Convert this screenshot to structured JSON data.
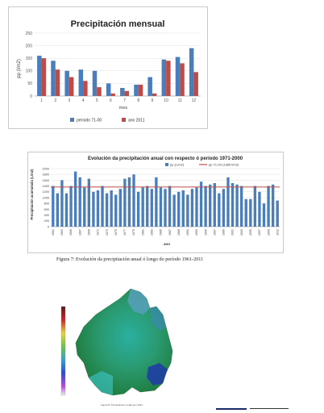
{
  "monthly": {
    "title": "Precipitación mensual",
    "ylabel": "pp (l/m2)",
    "xlabel": "mes",
    "yticks": [
      "0",
      "50",
      "100",
      "150",
      "200",
      "250"
    ],
    "legend": [
      "período 71-00",
      "ano 2011"
    ],
    "colors": {
      "period": "#4a7ebb",
      "year": "#be4b48"
    }
  },
  "annual": {
    "title": "Evolución da precipitación anual con respecto ó período 1971-2000",
    "ylabel": "Precipitación acumulada (L/m2)",
    "xlabel": "ano",
    "yticks": [
      "0",
      "200",
      "400",
      "600",
      "800",
      "1000",
      "1200",
      "1400",
      "1600",
      "1800",
      "2000"
    ],
    "legend": [
      "pp (L/m2)",
      "pp 71-00 (1365 l/m2)"
    ],
    "colors": {
      "bars": "#4a7ebb",
      "ref": "#c0504d"
    }
  },
  "figure_caption": "Figura 7: Evolución da precipitación anual ó longo do período 1961-2011",
  "map_caption": "Figura 8: Precipitación media ano 2011",
  "chart_data": [
    {
      "type": "bar",
      "title": "Precipitación mensual",
      "xlabel": "mes",
      "ylabel": "pp (l/m2)",
      "categories": [
        "1",
        "2",
        "3",
        "4",
        "5",
        "6",
        "7",
        "8",
        "9",
        "10",
        "11",
        "12"
      ],
      "ylim": [
        0,
        250
      ],
      "series": [
        {
          "name": "período 71-00",
          "values": [
            160,
            140,
            100,
            105,
            100,
            50,
            32,
            45,
            75,
            145,
            155,
            190
          ]
        },
        {
          "name": "ano 2011",
          "values": [
            150,
            105,
            75,
            60,
            35,
            10,
            20,
            45,
            10,
            140,
            130,
            95
          ]
        }
      ],
      "legend_position": "bottom"
    },
    {
      "type": "bar",
      "title": "Evolución da precipitación anual con respecto ó período 1971-2000",
      "xlabel": "ano",
      "ylabel": "Precipitación acumulada (L/m2)",
      "x": [
        "1961",
        "1962",
        "1963",
        "1964",
        "1965",
        "1966",
        "1967",
        "1968",
        "1969",
        "1970",
        "1971",
        "1972",
        "1973",
        "1974",
        "1975",
        "1976",
        "1977",
        "1978",
        "1979",
        "1980",
        "1981",
        "1982",
        "1983",
        "1984",
        "1985",
        "1986",
        "1987",
        "1988",
        "1989",
        "1990",
        "1991",
        "1992",
        "1993",
        "1994",
        "1995",
        "1996",
        "1997",
        "1998",
        "1999",
        "2000",
        "2001",
        "2002",
        "2003",
        "2004",
        "2005",
        "2006",
        "2007",
        "2008",
        "2009",
        "2010",
        "2011"
      ],
      "tick_labels": [
        "1961",
        "1963",
        "1965",
        "1967",
        "1969",
        "1971",
        "1973",
        "1975",
        "1977",
        "1979",
        "1981",
        "1983",
        "1985",
        "1987",
        "1989",
        "1991",
        "1993",
        "1995",
        "1997",
        "1999",
        "2001",
        "2003",
        "2005",
        "2007",
        "2009",
        "2011"
      ],
      "ylim": [
        0,
        2000
      ],
      "series": [
        {
          "name": "pp (L/m2)",
          "values": [
            1400,
            1150,
            1600,
            1150,
            1400,
            1900,
            1700,
            1350,
            1650,
            1200,
            1250,
            1400,
            1150,
            1250,
            1100,
            1300,
            1650,
            1700,
            1800,
            1200,
            1350,
            1400,
            1300,
            1700,
            1350,
            1300,
            1400,
            1100,
            1200,
            1250,
            1100,
            1300,
            1350,
            1550,
            1400,
            1450,
            1500,
            1150,
            1300,
            1700,
            1500,
            1450,
            1400,
            950,
            950,
            1400,
            1200,
            800,
            1400,
            1450,
            900
          ]
        },
        {
          "name": "pp 71-00 (1365 l/m2)",
          "constant": 1365
        }
      ],
      "legend_position": "top"
    }
  ]
}
